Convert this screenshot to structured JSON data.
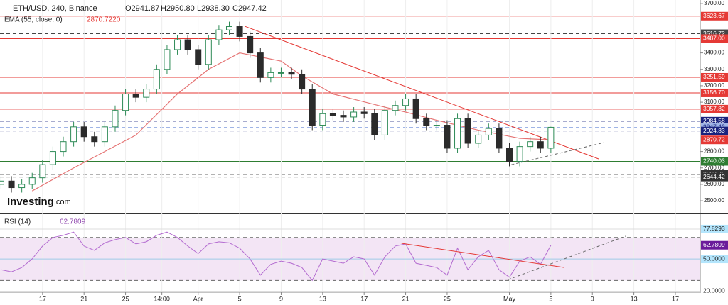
{
  "header": {
    "symbol": "ETH/USD, 240, Binance",
    "open": "O2941.87",
    "high": "H2950.80",
    "low": "L2938.30",
    "close": "C2947.42",
    "ema_title": "EMA (55, close, 0)",
    "ema_value": "2870.7220",
    "rsi_title": "RSI (14)",
    "watermark_brand": "Investing",
    "watermark_domain": ".com"
  },
  "chart_data": [
    {
      "type": "candlestick",
      "up_color": "#2e8b57",
      "down_color": "#2b2b2b",
      "xlim": [
        -4.1,
        63.4
      ],
      "ylim": [
        2427,
        3722
      ],
      "yticks": [
        {
          "value": 3700,
          "label": "3700.00"
        },
        {
          "value": 3400,
          "label": "3400.00"
        },
        {
          "value": 3300,
          "label": "3300.00"
        },
        {
          "value": 3200,
          "label": "3200.00"
        },
        {
          "value": 3100,
          "label": "3100.00"
        },
        {
          "value": 2800,
          "label": "2800.00"
        },
        {
          "value": 2700,
          "label": "2700.00"
        },
        {
          "value": 2600,
          "label": "2600.00"
        },
        {
          "value": 2500,
          "label": "2500.00"
        }
      ],
      "x": [
        -4,
        -3,
        -2,
        -1,
        0,
        1,
        2,
        3,
        4,
        5,
        6,
        7,
        8,
        9,
        10,
        11,
        12,
        13,
        14,
        15,
        16,
        17,
        18,
        19,
        20,
        21,
        22,
        23,
        24,
        25,
        26,
        27,
        28,
        29,
        30,
        31,
        32,
        33,
        34,
        35,
        36,
        37,
        38,
        39,
        40,
        41,
        42,
        43,
        44,
        45,
        46,
        47,
        48,
        49
      ],
      "open": [
        2600,
        2620,
        2580,
        2600,
        2640,
        2720,
        2800,
        2860,
        2950,
        2890,
        2860,
        2950,
        3050,
        3150,
        3130,
        3180,
        3300,
        3420,
        3480,
        3420,
        3330,
        3480,
        3540,
        3560,
        3500,
        3400,
        3250,
        3280,
        3280,
        3270,
        3180,
        2960,
        3030,
        3020,
        3010,
        3040,
        3030,
        2900,
        3050,
        3080,
        3120,
        3000,
        2960,
        2960,
        2820,
        3000,
        2850,
        2900,
        2940,
        2820,
        2740,
        2830,
        2860,
        2820
      ],
      "high": [
        2650,
        2650,
        2630,
        2670,
        2750,
        2830,
        2890,
        2980,
        2980,
        2920,
        2980,
        3080,
        3180,
        3180,
        3210,
        3330,
        3450,
        3510,
        3510,
        3450,
        3510,
        3570,
        3590,
        3590,
        3530,
        3430,
        3310,
        3310,
        3310,
        3300,
        3210,
        3060,
        3060,
        3050,
        3070,
        3070,
        3060,
        3080,
        3110,
        3150,
        3150,
        3030,
        2990,
        2990,
        3030,
        3030,
        2930,
        2970,
        2970,
        2850,
        2860,
        2890,
        2890,
        2950.8
      ],
      "low": [
        2570,
        2550,
        2550,
        2570,
        2610,
        2690,
        2770,
        2830,
        2860,
        2830,
        2830,
        2920,
        3020,
        3100,
        3100,
        3150,
        3270,
        3390,
        3390,
        3300,
        3300,
        3450,
        3510,
        3470,
        3370,
        3220,
        3220,
        3250,
        3240,
        3150,
        2930,
        2930,
        2990,
        2980,
        2980,
        3000,
        2870,
        2870,
        3020,
        3050,
        2970,
        2930,
        2930,
        2790,
        2790,
        2820,
        2820,
        2870,
        2790,
        2710,
        2710,
        2800,
        2790,
        2790
      ],
      "close": [
        2620,
        2580,
        2600,
        2640,
        2720,
        2800,
        2860,
        2950,
        2890,
        2860,
        2950,
        3050,
        3150,
        3130,
        3180,
        3300,
        3420,
        3480,
        3420,
        3330,
        3480,
        3540,
        3560,
        3500,
        3400,
        3250,
        3280,
        3280,
        3270,
        3180,
        2960,
        3030,
        3020,
        3010,
        3040,
        3030,
        2900,
        3050,
        3080,
        3120,
        3000,
        2960,
        2960,
        2820,
        3000,
        2850,
        2900,
        2940,
        2820,
        2740,
        2830,
        2860,
        2820,
        2947.42
      ],
      "ema": {
        "color": "#e57373",
        "x": [
          -1,
          3,
          9,
          13,
          16,
          19,
          23,
          25,
          28,
          33,
          35,
          38,
          42,
          46,
          49
        ],
        "values": [
          2560,
          2700,
          2900,
          3150,
          3300,
          3400,
          3350,
          3260,
          3150,
          3070,
          3040,
          2990,
          2930,
          2880,
          2870.722
        ]
      },
      "levels": [
        {
          "value": 3623.67,
          "label": "3623.67",
          "color": "#e53935",
          "dash": false,
          "line": true
        },
        {
          "value": 3516.72,
          "label": "3516.72",
          "color": "#444444",
          "dash": true,
          "line": true
        },
        {
          "value": 3487,
          "label": "3487.00",
          "color": "#e53935",
          "dash": false,
          "line": true
        },
        {
          "value": 3251.59,
          "label": "3251.59",
          "color": "#e53935",
          "dash": false,
          "line": true
        },
        {
          "value": 3156.7,
          "label": "3156.70",
          "color": "#e53935",
          "dash": false,
          "line": true
        },
        {
          "value": 3057.82,
          "label": "3057.82",
          "color": "#e53935",
          "dash": false,
          "line": true
        },
        {
          "value": 2984.58,
          "label": "2984.58",
          "color": "#1a237e",
          "dash": true,
          "line": true
        },
        {
          "value": 2947.42,
          "label": "2947.42",
          "color": "#9fb4e6",
          "dash": true,
          "line": true
        },
        {
          "value": 2924.83,
          "label": "2924.83",
          "color": "#1a237e",
          "dash": true,
          "line": true
        },
        {
          "value": 2870.72,
          "label": "2870.72",
          "color": "#e53935",
          "dash": false,
          "line": false
        },
        {
          "value": 2740.03,
          "label": "2740.03",
          "color": "#2e7d32",
          "dash": false,
          "line": true
        },
        {
          "value": 2660.75,
          "label": "2660.75",
          "color": "#333333",
          "dash": true,
          "line": true
        },
        {
          "value": 2644.42,
          "label": "2644.42",
          "color": "#333333",
          "dash": true,
          "line": true
        }
      ],
      "trendlines": [
        {
          "x": [
            19.5,
            53.6
          ],
          "y": [
            3562,
            2755
          ],
          "color": "#e53935",
          "dash": false
        },
        {
          "x": [
            45.2,
            54.1
          ],
          "y": [
            2720,
            2854
          ],
          "color": "#666666",
          "dash": true
        }
      ]
    },
    {
      "type": "line",
      "color": "#b36bd0",
      "xlim": [
        -4.1,
        63.4
      ],
      "ylim": [
        19,
        91
      ],
      "xticks": [
        {
          "value": 0,
          "label": "17"
        },
        {
          "value": 4,
          "label": "21"
        },
        {
          "value": 8,
          "label": "25"
        },
        {
          "value": 11.5,
          "label": "14:00"
        },
        {
          "value": 15,
          "label": "Apr"
        },
        {
          "value": 19,
          "label": "5"
        },
        {
          "value": 23,
          "label": "9"
        },
        {
          "value": 27,
          "label": "13"
        },
        {
          "value": 31,
          "label": "17"
        },
        {
          "value": 35,
          "label": "21"
        },
        {
          "value": 39,
          "label": "25"
        },
        {
          "value": 45,
          "label": "May"
        },
        {
          "value": 49,
          "label": "5"
        },
        {
          "value": 53,
          "label": "9"
        },
        {
          "value": 57,
          "label": "13"
        },
        {
          "value": 61,
          "label": "17"
        }
      ],
      "yticks": [
        77.8293,
        {
          "value": 50,
          "label": "50.0000"
        },
        {
          "value": 20,
          "label": "20.0000"
        }
      ],
      "band": [
        30,
        70
      ],
      "band_color": "#f3e5f5",
      "values": [
        40,
        38,
        42,
        50,
        62,
        70,
        72,
        75,
        62,
        58,
        65,
        68,
        70,
        64,
        66,
        72,
        75,
        70,
        62,
        55,
        64,
        66,
        65,
        60,
        50,
        35,
        45,
        48,
        46,
        42,
        30,
        50,
        48,
        46,
        52,
        50,
        35,
        52,
        62,
        64,
        46,
        44,
        42,
        35,
        60,
        40,
        52,
        58,
        40,
        33,
        48,
        52,
        45,
        62.7809
      ],
      "trendlines": [
        {
          "x": [
            34.6,
            50.3
          ],
          "y": [
            64.6,
            42
          ],
          "color": "#e53935",
          "dash": false
        },
        {
          "x": [
            44.9,
            56.2
          ],
          "y": [
            30.8,
            71.2
          ],
          "color": "#666666",
          "dash": true
        }
      ]
    }
  ]
}
